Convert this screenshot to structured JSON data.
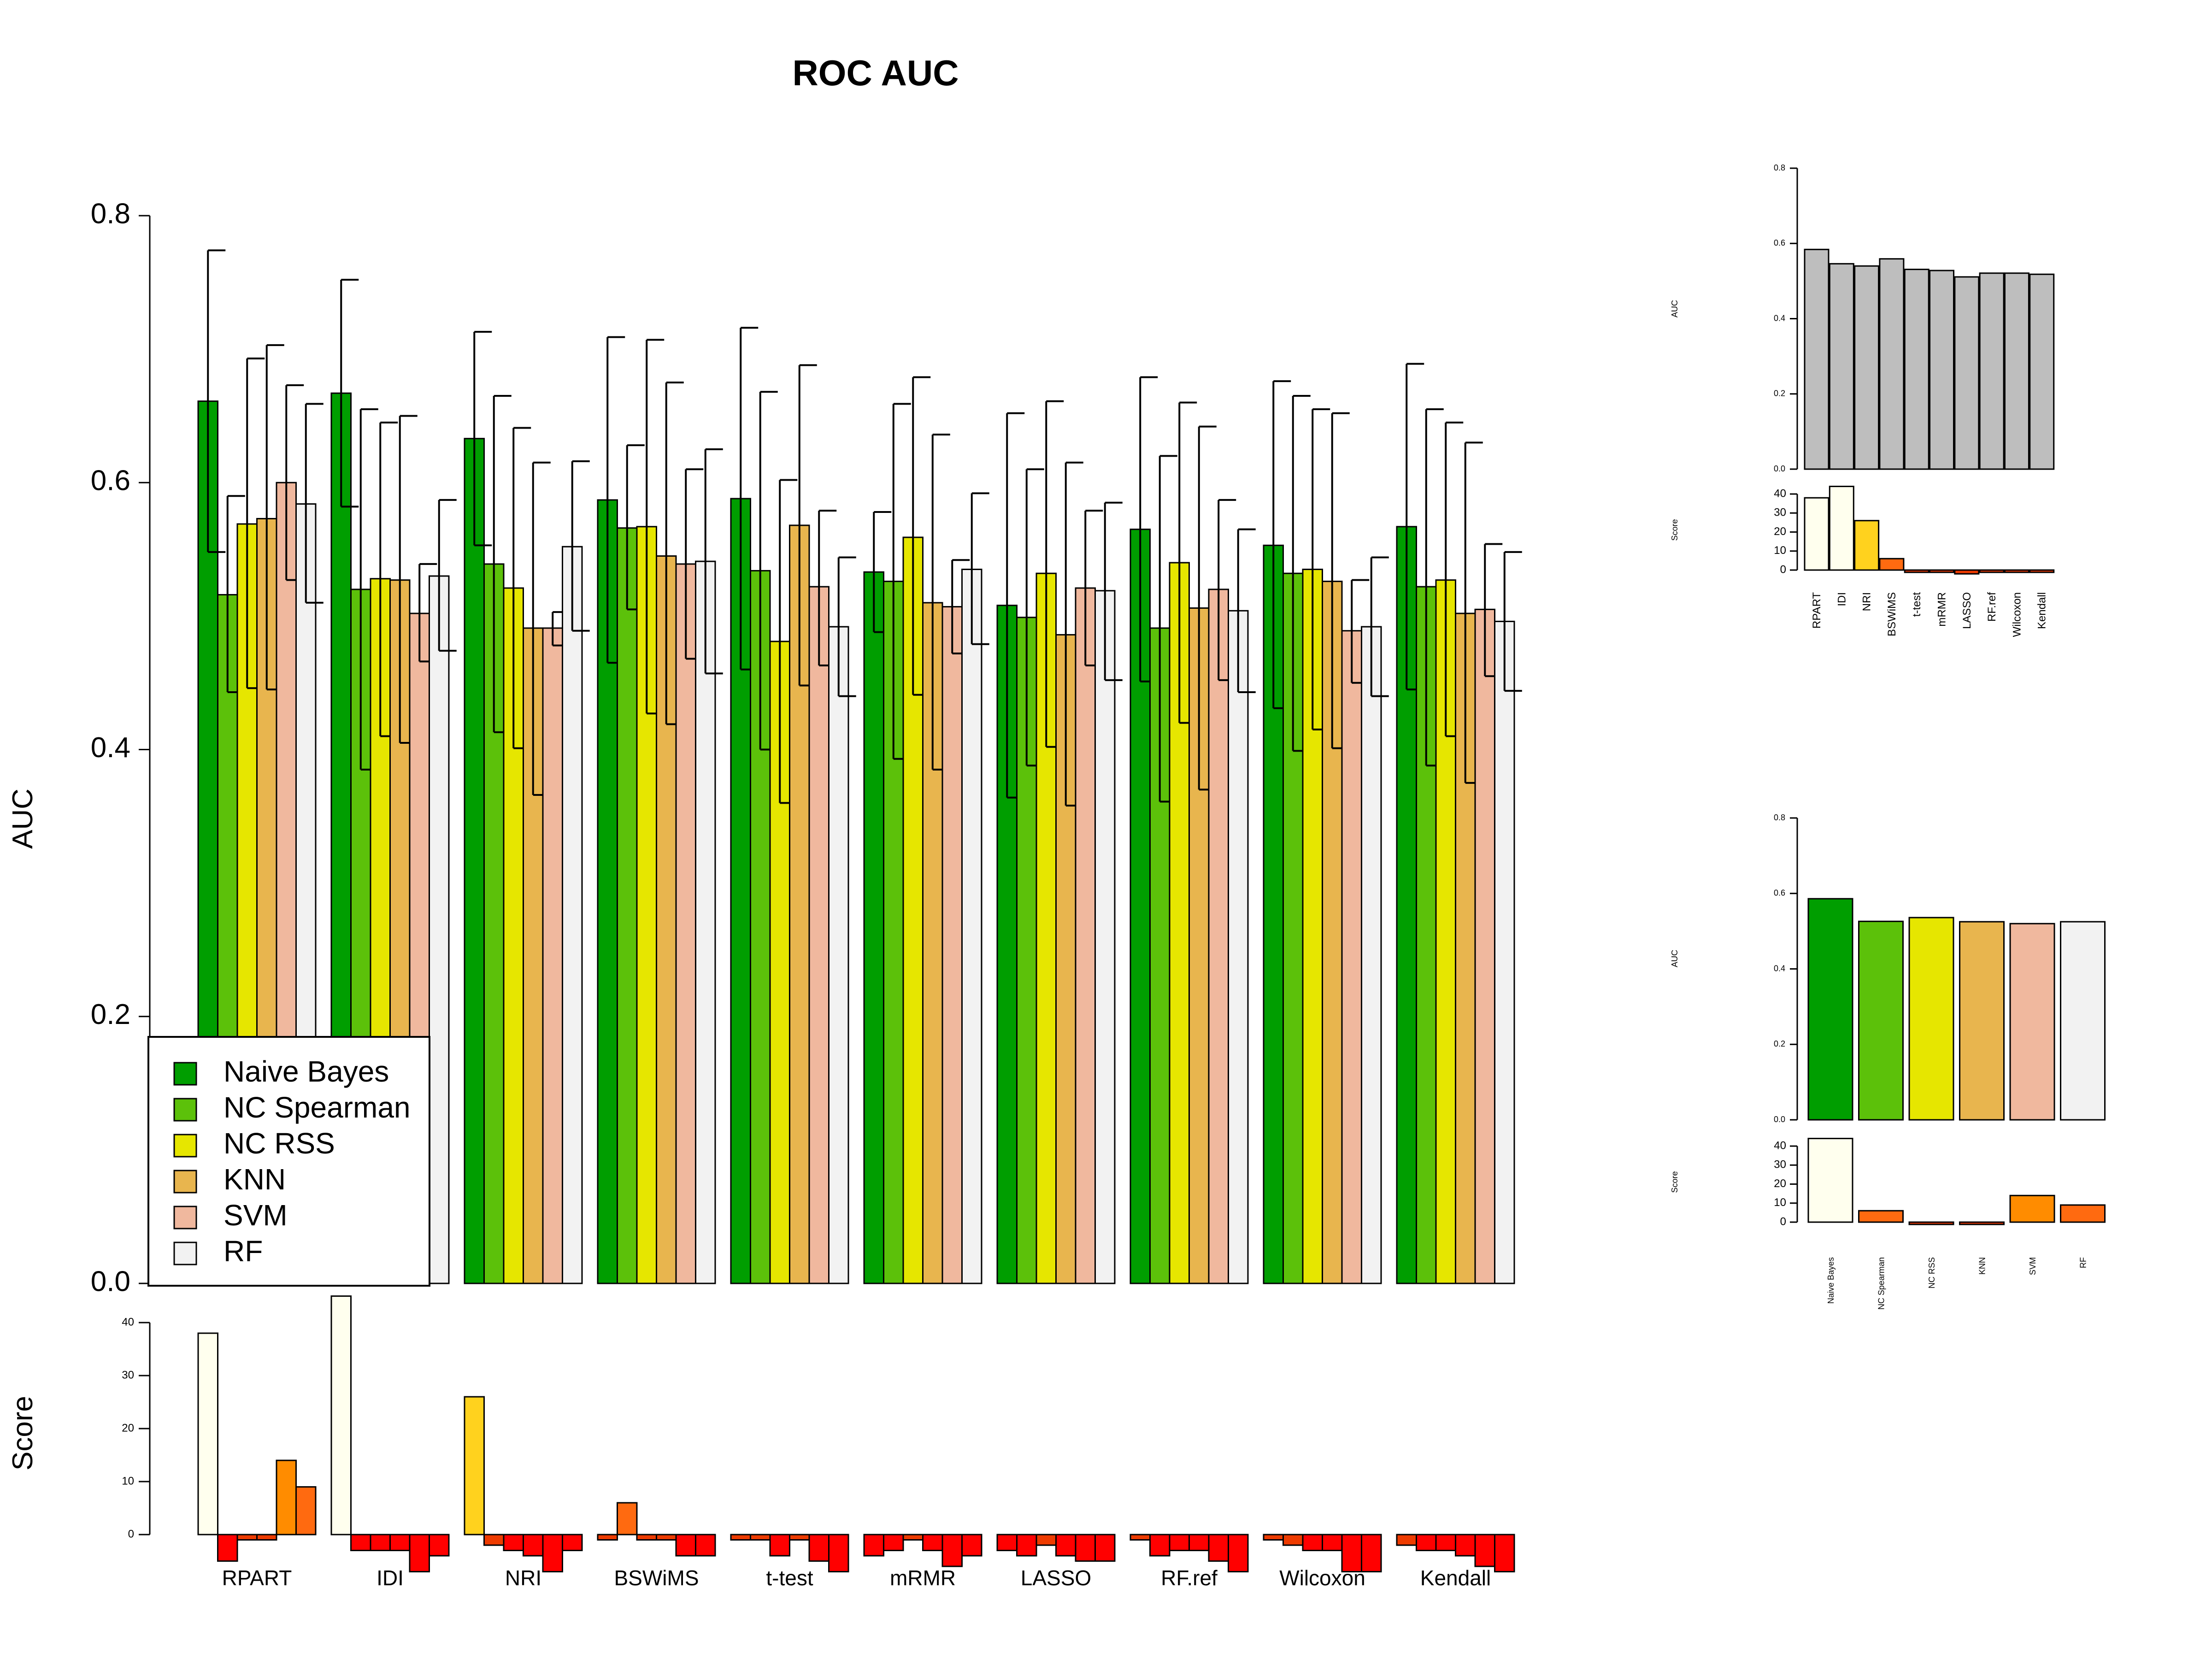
{
  "colors": {
    "Naive Bayes": "#009E00",
    "NC Spearman": "#5CC10A",
    "NC RSS": "#E6E600",
    "KNN": "#E8B54E",
    "SVM": "#F0B89E",
    "RF": "#F2F2F2"
  },
  "chart_data": [
    {
      "id": "main",
      "type": "bar",
      "title": "ROC AUC",
      "xlabel": "",
      "ylabel": "AUC",
      "ylim": [
        0,
        0.8
      ],
      "yticks": [
        "0.0",
        "0.2",
        "0.4",
        "0.6",
        "0.8"
      ],
      "categories": [
        "RPART",
        "IDI",
        "NRI",
        "BSWiMS",
        "t-test",
        "mRMR",
        "LASSO",
        "RF.ref",
        "Wilcoxon",
        "Kendall"
      ],
      "legend_position": "bottom-left",
      "series": [
        {
          "name": "Naive Bayes",
          "values": [
            0.661,
            0.667,
            0.633,
            0.587,
            0.588,
            0.533,
            0.508,
            0.565,
            0.553,
            0.567
          ],
          "err_low": [
            0.548,
            0.582,
            0.553,
            0.465,
            0.46,
            0.488,
            0.364,
            0.451,
            0.431,
            0.445
          ],
          "err_high": [
            0.774,
            0.752,
            0.713,
            0.709,
            0.716,
            0.578,
            0.652,
            0.679,
            0.676,
            0.689
          ]
        },
        {
          "name": "NC Spearman",
          "values": [
            0.516,
            0.52,
            0.539,
            0.566,
            0.534,
            0.526,
            0.499,
            0.491,
            0.532,
            0.522
          ],
          "err_low": [
            0.443,
            0.385,
            0.413,
            0.505,
            0.4,
            0.393,
            0.388,
            0.361,
            0.399,
            0.388
          ],
          "err_high": [
            0.59,
            0.655,
            0.665,
            0.628,
            0.668,
            0.659,
            0.61,
            0.62,
            0.665,
            0.655
          ]
        },
        {
          "name": "NC RSS",
          "values": [
            0.569,
            0.528,
            0.521,
            0.567,
            0.481,
            0.559,
            0.532,
            0.54,
            0.535,
            0.527
          ],
          "err_low": [
            0.446,
            0.41,
            0.401,
            0.427,
            0.36,
            0.441,
            0.402,
            0.42,
            0.415,
            0.41
          ],
          "err_high": [
            0.693,
            0.645,
            0.641,
            0.707,
            0.602,
            0.679,
            0.661,
            0.66,
            0.655,
            0.645
          ]
        },
        {
          "name": "KNN",
          "values": [
            0.573,
            0.527,
            0.491,
            0.545,
            0.568,
            0.51,
            0.486,
            0.506,
            0.526,
            0.502
          ],
          "err_low": [
            0.445,
            0.405,
            0.366,
            0.419,
            0.448,
            0.385,
            0.358,
            0.37,
            0.401,
            0.375
          ],
          "err_high": [
            0.703,
            0.65,
            0.615,
            0.675,
            0.688,
            0.636,
            0.615,
            0.642,
            0.652,
            0.63
          ]
        },
        {
          "name": "SVM",
          "values": [
            0.6,
            0.502,
            0.491,
            0.539,
            0.522,
            0.507,
            0.521,
            0.52,
            0.489,
            0.505
          ],
          "err_low": [
            0.527,
            0.466,
            0.478,
            0.468,
            0.463,
            0.472,
            0.463,
            0.452,
            0.45,
            0.455
          ],
          "err_high": [
            0.673,
            0.539,
            0.503,
            0.61,
            0.579,
            0.542,
            0.579,
            0.587,
            0.527,
            0.554
          ]
        },
        {
          "name": "RF",
          "values": [
            0.584,
            0.53,
            0.552,
            0.541,
            0.492,
            0.535,
            0.519,
            0.504,
            0.492,
            0.496
          ],
          "err_low": [
            0.51,
            0.474,
            0.489,
            0.457,
            0.44,
            0.479,
            0.452,
            0.443,
            0.44,
            0.444
          ],
          "err_high": [
            0.659,
            0.587,
            0.616,
            0.625,
            0.544,
            0.592,
            0.585,
            0.565,
            0.544,
            0.548
          ]
        }
      ]
    },
    {
      "id": "main-score",
      "type": "bar",
      "ylabel": "Score",
      "ylim": [
        -8,
        40
      ],
      "yticks": [
        "0",
        "10",
        "20",
        "30",
        "40"
      ],
      "categories": [
        "RPART",
        "IDI",
        "NRI",
        "BSWiMS",
        "t-test",
        "mRMR",
        "LASSO",
        "RF.ref",
        "Wilcoxon",
        "Kendall"
      ],
      "values": [
        [
          38,
          -5,
          -1,
          -1,
          14,
          9
        ],
        [
          45,
          -3,
          -3,
          -3,
          -7,
          -4
        ],
        [
          26,
          -2,
          -3,
          -4,
          -7,
          -3
        ],
        [
          -1,
          6,
          -1,
          -1,
          -4,
          -4
        ],
        [
          -1,
          -1,
          -4,
          -1,
          -5,
          -7
        ],
        [
          -4,
          -3,
          -1,
          -3,
          -6,
          -4
        ],
        [
          -3,
          -4,
          -2,
          -4,
          -5,
          -5
        ],
        [
          -1,
          -4,
          -3,
          -3,
          -5,
          -7
        ],
        [
          -1,
          -2,
          -3,
          -3,
          -7,
          -7
        ],
        [
          -2,
          -3,
          -3,
          -4,
          -6,
          -7
        ]
      ]
    },
    {
      "id": "summary-methods",
      "type": "bar",
      "ylabel": "AUC",
      "ylim": [
        0,
        0.8
      ],
      "yticks": [
        "0.0",
        "0.2",
        "0.4",
        "0.6",
        "0.8"
      ],
      "categories": [
        "RPART",
        "IDI",
        "NRI",
        "BSWiMS",
        "t-test",
        "mRMR",
        "LASSO",
        "RF.ref",
        "Wilcoxon",
        "Kendall"
      ],
      "values": [
        0.584,
        0.546,
        0.54,
        0.559,
        0.531,
        0.528,
        0.511,
        0.521,
        0.521,
        0.518
      ]
    },
    {
      "id": "summary-methods-score",
      "type": "bar",
      "ylabel": "Score",
      "ylim": [
        -2,
        40
      ],
      "yticks": [
        "0",
        "10",
        "20",
        "30",
        "40"
      ],
      "categories": [
        "RPART",
        "IDI",
        "NRI",
        "BSWiMS",
        "t-test",
        "mRMR",
        "LASSO",
        "RF.ref",
        "Wilcoxon",
        "Kendall"
      ],
      "values": [
        38,
        44,
        26,
        6,
        -1,
        -1,
        -2,
        -1,
        -1,
        -1
      ]
    },
    {
      "id": "summary-classifiers",
      "type": "bar",
      "ylabel": "AUC",
      "ylim": [
        0,
        0.8
      ],
      "yticks": [
        "0.0",
        "0.2",
        "0.4",
        "0.6",
        "0.8"
      ],
      "categories": [
        "Naive Bayes",
        "NC Spearman",
        "NC RSS",
        "KNN",
        "SVM",
        "RF"
      ],
      "values": [
        0.586,
        0.526,
        0.536,
        0.525,
        0.52,
        0.525
      ]
    },
    {
      "id": "summary-classifiers-score",
      "type": "bar",
      "ylabel": "Score",
      "ylim": [
        -2,
        40
      ],
      "yticks": [
        "0",
        "10",
        "20",
        "30",
        "40"
      ],
      "categories": [
        "Naive Bayes",
        "NC Spearman",
        "NC RSS",
        "KNN",
        "SVM",
        "RF"
      ],
      "values": [
        44,
        6,
        -1,
        -1,
        14,
        9
      ]
    }
  ]
}
